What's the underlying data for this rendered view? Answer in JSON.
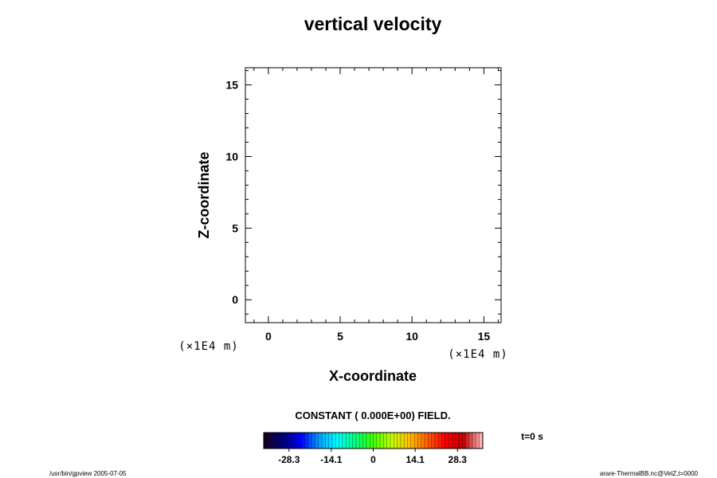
{
  "chart_data": {
    "type": "heatmap",
    "title": "vertical velocity",
    "xlabel": "X-coordinate",
    "ylabel": "Z-coordinate",
    "x_unit": "(×1E4 m)",
    "y_unit": "(×1E4 m)",
    "xlim": [
      -1.6,
      16.2
    ],
    "ylim": [
      -1.6,
      16.2
    ],
    "x_ticks": [
      0,
      5,
      10,
      15
    ],
    "y_ticks": [
      0,
      5,
      10,
      15
    ],
    "x_tick_labels": [
      "0",
      "5",
      "10",
      "15"
    ],
    "y_tick_labels": [
      "0",
      "5",
      "10",
      "15"
    ],
    "grid": false,
    "field_note": "CONSTANT ( 0.000E+00) FIELD.",
    "time_label": "t=0 s",
    "colorbar": {
      "range": [
        -36.8,
        36.8
      ],
      "ticks": [
        -28.3,
        -14.1,
        0,
        14.1,
        28.3
      ],
      "tick_labels": [
        "-28.3",
        "-14.1",
        "0",
        "14.1",
        "28.3"
      ],
      "colormap": [
        "#150028",
        "#000080",
        "#0000ff",
        "#00a0ff",
        "#00ffff",
        "#00ff80",
        "#40ff00",
        "#c0ff00",
        "#ffc000",
        "#ff6000",
        "#ff0000",
        "#c00000",
        "#ffb0b0"
      ]
    }
  },
  "footer": {
    "left": "/usr/bin/gpview 2005-07-05",
    "right": "arare-ThermalBB.nc@VelZ,t=0000"
  }
}
